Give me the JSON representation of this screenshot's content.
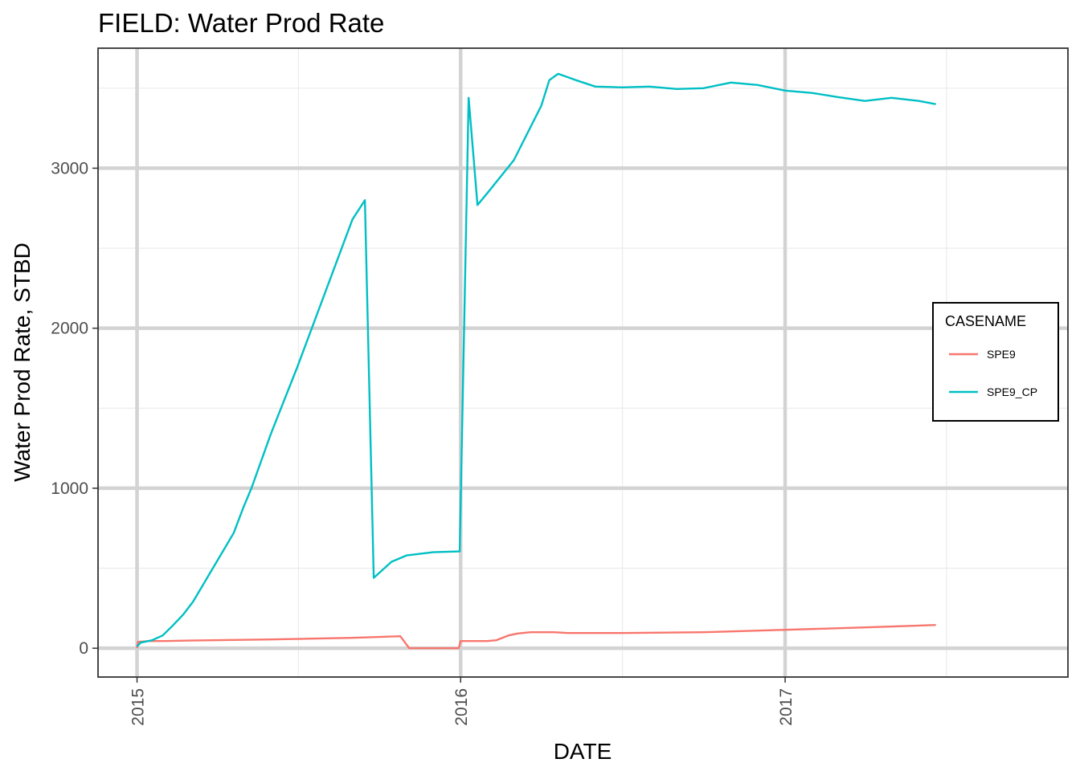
{
  "chart_data": {
    "type": "line",
    "title": "FIELD:  Water Prod Rate",
    "xlabel": "DATE",
    "ylabel": "Water Prod Rate, STBD",
    "x_ticks": [
      "2015",
      "2016",
      "2017"
    ],
    "y_ticks": [
      "0",
      "1000",
      "2000",
      "3000"
    ],
    "ylim": [
      -180,
      3750
    ],
    "xlim": [
      "2014-11-18",
      "2017-11-16"
    ],
    "grid": true,
    "legend": {
      "title": "CASENAME",
      "position": "right"
    },
    "series": [
      {
        "name": "SPE9",
        "color": "#F8766D",
        "points": [
          [
            "2015-01-01",
            0
          ],
          [
            "2015-01-02",
            40
          ],
          [
            "2015-01-15",
            45
          ],
          [
            "2015-02-01",
            45
          ],
          [
            "2015-03-01",
            48
          ],
          [
            "2015-06-01",
            55
          ],
          [
            "2015-09-01",
            65
          ],
          [
            "2015-10-25",
            75
          ],
          [
            "2015-11-04",
            0
          ],
          [
            "2015-12-30",
            0
          ],
          [
            "2016-01-01",
            45
          ],
          [
            "2016-01-31",
            45
          ],
          [
            "2016-02-10",
            50
          ],
          [
            "2016-02-24",
            80
          ],
          [
            "2016-03-05",
            92
          ],
          [
            "2016-03-20",
            100
          ],
          [
            "2016-04-15",
            100
          ],
          [
            "2016-05-01",
            95
          ],
          [
            "2016-07-01",
            95
          ],
          [
            "2016-10-01",
            100
          ],
          [
            "2017-01-01",
            115
          ],
          [
            "2017-04-01",
            130
          ],
          [
            "2017-06-20",
            145
          ]
        ]
      },
      {
        "name": "SPE9_CP",
        "color": "#00BFC4",
        "points": [
          [
            "2015-01-01",
            10
          ],
          [
            "2015-01-05",
            35
          ],
          [
            "2015-01-18",
            50
          ],
          [
            "2015-01-30",
            80
          ],
          [
            "2015-02-10",
            140
          ],
          [
            "2015-02-22",
            210
          ],
          [
            "2015-03-05",
            290
          ],
          [
            "2015-03-20",
            430
          ],
          [
            "2015-04-05",
            580
          ],
          [
            "2015-04-20",
            720
          ],
          [
            "2015-05-01",
            880
          ],
          [
            "2015-05-10",
            1000
          ],
          [
            "2015-06-01",
            1340
          ],
          [
            "2015-07-01",
            1760
          ],
          [
            "2015-08-01",
            2220
          ],
          [
            "2015-09-01",
            2680
          ],
          [
            "2015-09-15",
            2800
          ],
          [
            "2015-09-25",
            440
          ],
          [
            "2015-10-15",
            540
          ],
          [
            "2015-11-01",
            580
          ],
          [
            "2015-12-01",
            600
          ],
          [
            "2015-12-31",
            605
          ],
          [
            "2016-01-10",
            3440
          ],
          [
            "2016-01-20",
            2770
          ],
          [
            "2016-02-01",
            2850
          ],
          [
            "2016-03-01",
            3050
          ],
          [
            "2016-04-01",
            3390
          ],
          [
            "2016-04-10",
            3550
          ],
          [
            "2016-04-20",
            3590
          ],
          [
            "2016-05-10",
            3550
          ],
          [
            "2016-06-01",
            3510
          ],
          [
            "2016-07-01",
            3505
          ],
          [
            "2016-08-01",
            3510
          ],
          [
            "2016-09-01",
            3495
          ],
          [
            "2016-10-01",
            3500
          ],
          [
            "2016-11-01",
            3535
          ],
          [
            "2016-12-01",
            3520
          ],
          [
            "2017-01-01",
            3485
          ],
          [
            "2017-02-01",
            3470
          ],
          [
            "2017-03-01",
            3445
          ],
          [
            "2017-04-01",
            3420
          ],
          [
            "2017-05-01",
            3440
          ],
          [
            "2017-06-01",
            3420
          ],
          [
            "2017-06-20",
            3400
          ]
        ]
      }
    ]
  }
}
